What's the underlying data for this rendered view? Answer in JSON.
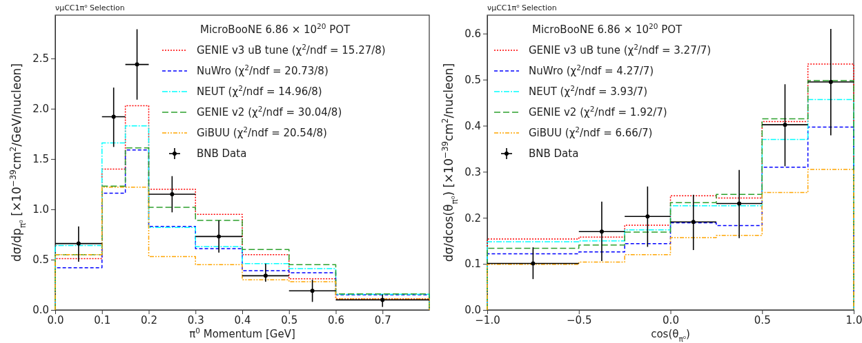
{
  "chart_data": [
    {
      "type": "histogram",
      "title": "νμCC1π⁰ Selection",
      "xlabel": "π$^{0}$ Momentum [GeV]",
      "ylabel": "dσ/dp$_{π⁰}$ [×10$^{−39}$cm$^{2}$/GeV/nucleon]",
      "legend_title": "MicroBooNE 6.86 × 10$^{20}$ POT",
      "bins": [
        0,
        0.1,
        0.15,
        0.2,
        0.3,
        0.4,
        0.5,
        0.6,
        0.8
      ],
      "series": [
        {
          "name": "GENIE v3 uB tune (χ$^{2}$/ndf = 15.27/8)",
          "color": "#ff0000",
          "line_style": "dotted",
          "values": [
            0.51,
            1.4,
            2.03,
            1.2,
            0.95,
            0.55,
            0.31,
            0.11
          ]
        },
        {
          "name": "NuWro (χ$^{2}$/ndf = 20.73/8)",
          "color": "#0000ff",
          "line_style": "dashed",
          "values": [
            0.42,
            1.16,
            1.59,
            0.83,
            0.61,
            0.39,
            0.37,
            0.15
          ]
        },
        {
          "name": "NEUT (χ$^{2}$/ndf = 14.96/8)",
          "color": "#00ffff",
          "line_style": "dashed",
          "values": [
            0.64,
            1.66,
            1.83,
            0.82,
            0.63,
            0.46,
            0.41,
            0.155
          ]
        },
        {
          "name": "GENIE v2 (χ$^{2}$/ndf = 30.04/8)",
          "color": "#2ca02c",
          "line_style": "dashed",
          "values": [
            0.55,
            1.23,
            1.61,
            1.02,
            0.89,
            0.6,
            0.45,
            0.16
          ]
        },
        {
          "name": "GiBUU (χ$^{2}$/ndf = 20.54/8)",
          "color": "#ffa500",
          "line_style": "dashed",
          "values": [
            0.55,
            1.22,
            1.22,
            0.53,
            0.45,
            0.3,
            0.28,
            0.11
          ]
        },
        {
          "name": "BNB Data",
          "type": "scatter",
          "color": "#000000",
          "marker": "circle",
          "x": [
            0.05,
            0.125,
            0.175,
            0.25,
            0.35,
            0.45,
            0.55,
            0.7
          ],
          "values": [
            0.66,
            1.92,
            2.44,
            1.15,
            0.73,
            0.34,
            0.19,
            0.1
          ],
          "errors": [
            [
              0.48,
              0.83
            ],
            [
              1.62,
              2.21
            ],
            [
              2.09,
              2.79
            ],
            [
              0.97,
              1.33
            ],
            [
              0.57,
              0.89
            ],
            [
              0.28,
              0.46
            ],
            [
              0.08,
              0.3
            ],
            [
              0.03,
              0.155
            ]
          ],
          "xerrors": [
            [
              0,
              0.1
            ],
            [
              0.1,
              0.15
            ],
            [
              0.15,
              0.2
            ],
            [
              0.2,
              0.3
            ],
            [
              0.3,
              0.4
            ],
            [
              0.4,
              0.5
            ],
            [
              0.5,
              0.6
            ],
            [
              0.6,
              0.8
            ]
          ]
        }
      ],
      "xlim": [
        0,
        0.8
      ],
      "xticks": [
        {
          "value": 0,
          "label": "0.0"
        },
        0.1,
        0.2,
        0.3,
        0.4,
        0.5,
        0.6,
        0.7
      ],
      "ylim": [
        0,
        2.93
      ],
      "yticks": [
        {
          "value": 0,
          "label": "0.0"
        },
        0.5,
        {
          "value": 1,
          "label": "1.0"
        },
        1.5,
        {
          "value": 2,
          "label": "2.0"
        },
        2.5
      ],
      "legend": "top right"
    },
    {
      "type": "histogram",
      "title": "νμCC1π⁰ Selection",
      "xlabel": "cos(θ$_{π⁰}$)",
      "ylabel": "dσ/dcos(θ$_{π⁰}$) [×10$^{−39}$cm$^{2}$/nucleon]",
      "legend_title": "MicroBooNE 6.86 × 10$^{20}$ POT",
      "bins": [
        -1,
        -0.5,
        -0.25,
        0,
        0.25,
        0.5,
        0.75,
        1
      ],
      "series": [
        {
          "name": "GENIE v3 uB tune (χ$^{2}$/ndf = 3.27/7)",
          "color": "#ff0000",
          "line_style": "dotted",
          "values": [
            0.154,
            0.158,
            0.184,
            0.248,
            0.243,
            0.409,
            0.534
          ]
        },
        {
          "name": "NuWro (χ$^{2}$/ndf = 4.27/7)",
          "color": "#0000ff",
          "line_style": "dashed",
          "values": [
            0.122,
            0.126,
            0.144,
            0.189,
            0.183,
            0.31,
            0.397
          ]
        },
        {
          "name": "NEUT (χ$^{2}$/ndf = 3.93/7)",
          "color": "#00ffff",
          "line_style": "dashed",
          "values": [
            0.148,
            0.15,
            0.174,
            0.226,
            0.226,
            0.37,
            0.457
          ]
        },
        {
          "name": "GENIE v2 (χ$^{2}$/ndf = 1.92/7)",
          "color": "#2ca02c",
          "line_style": "dashed",
          "values": [
            0.134,
            0.141,
            0.169,
            0.233,
            0.251,
            0.415,
            0.498
          ]
        },
        {
          "name": "GiBUU (χ$^{2}$/ndf = 6.66/7)",
          "color": "#ffa500",
          "line_style": "dashed",
          "values": [
            0.099,
            0.104,
            0.12,
            0.157,
            0.162,
            0.255,
            0.305
          ]
        },
        {
          "name": "BNB Data",
          "type": "scatter",
          "color": "#000000",
          "marker": "circle",
          "x": [
            -0.75,
            -0.375,
            -0.125,
            0.125,
            0.375,
            0.625,
            0.875
          ],
          "values": [
            0.101,
            0.17,
            0.203,
            0.191,
            0.231,
            0.402,
            0.495
          ],
          "errors": [
            [
              0.067,
              0.136
            ],
            [
              0.106,
              0.235
            ],
            [
              0.137,
              0.268
            ],
            [
              0.13,
              0.25
            ],
            [
              0.156,
              0.304
            ],
            [
              0.312,
              0.49
            ],
            [
              0.379,
              0.61
            ]
          ],
          "xerrors": [
            [
              -1,
              -0.5
            ],
            [
              -0.5,
              -0.25
            ],
            [
              -0.25,
              0
            ],
            [
              0,
              0.25
            ],
            [
              0.25,
              0.5
            ],
            [
              0.5,
              0.75
            ],
            [
              0.75,
              1
            ]
          ]
        }
      ],
      "xlim": [
        -1,
        1
      ],
      "xticks": [
        {
          "value": -1,
          "label": "−1.0"
        },
        {
          "value": -0.5,
          "label": "−0.5"
        },
        {
          "value": 0,
          "label": "0.0"
        },
        0.5,
        {
          "value": 1,
          "label": "1.0"
        }
      ],
      "ylim": [
        0,
        0.64
      ],
      "yticks": [
        {
          "value": 0,
          "label": "0.0"
        },
        0.1,
        0.2,
        0.3,
        0.4,
        0.5,
        0.6
      ],
      "legend": "top left"
    }
  ]
}
